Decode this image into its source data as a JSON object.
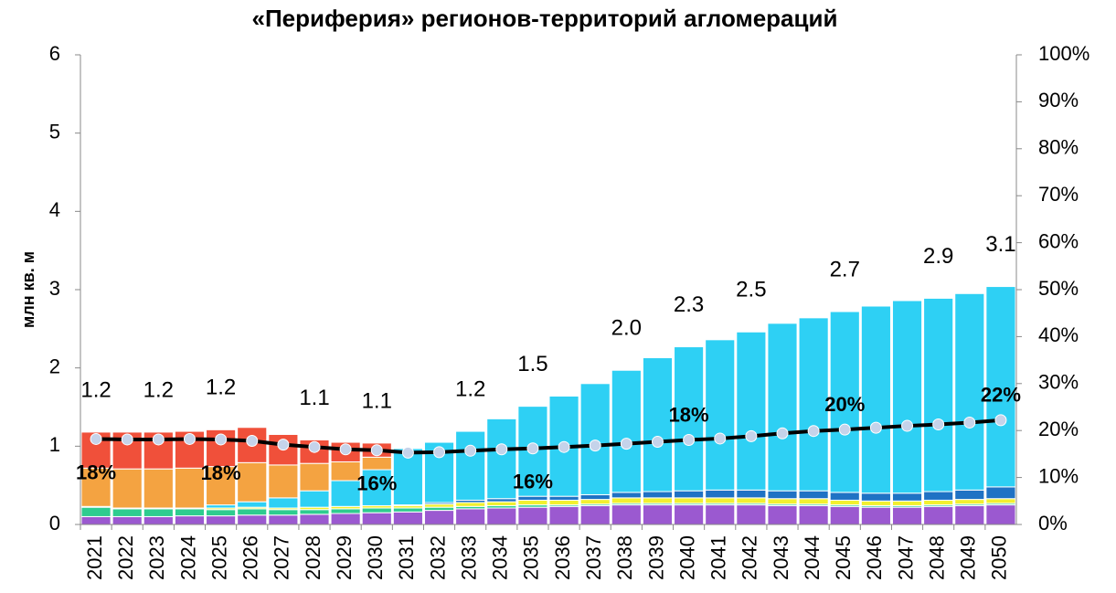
{
  "chart_data": {
    "type": "stacked_bar_line",
    "title": "«Периферия» регионов-территорий агломераций",
    "y_label": "млн кв. м",
    "categories": [
      "2021",
      "2022",
      "2023",
      "2024",
      "2025",
      "2026",
      "2027",
      "2028",
      "2029",
      "2030",
      "2031",
      "2032",
      "2033",
      "2034",
      "2035",
      "2036",
      "2037",
      "2038",
      "2039",
      "2040",
      "2041",
      "2042",
      "2043",
      "2044",
      "2045",
      "2046",
      "2047",
      "2048",
      "2049",
      "2050"
    ],
    "ylim": [
      0,
      6
    ],
    "yticks": [
      0,
      1,
      2,
      3,
      4,
      5,
      6
    ],
    "y2lim": [
      0,
      100
    ],
    "y2ticks": [
      {
        "value": 0,
        "label": "0%"
      },
      {
        "value": 10,
        "label": "10%"
      },
      {
        "value": 20,
        "label": "20%"
      },
      {
        "value": 30,
        "label": "30%"
      },
      {
        "value": 40,
        "label": "40%"
      },
      {
        "value": 50,
        "label": "50%"
      },
      {
        "value": 60,
        "label": "60%"
      },
      {
        "value": 70,
        "label": "70%"
      },
      {
        "value": 80,
        "label": "80%"
      },
      {
        "value": 90,
        "label": "90%"
      },
      {
        "value": 100,
        "label": "100%"
      }
    ],
    "series": [
      {
        "color": "#9b59d0",
        "values": [
          0.1,
          0.1,
          0.1,
          0.11,
          0.11,
          0.12,
          0.12,
          0.13,
          0.14,
          0.15,
          0.16,
          0.18,
          0.2,
          0.21,
          0.22,
          0.23,
          0.24,
          0.25,
          0.25,
          0.25,
          0.25,
          0.25,
          0.24,
          0.24,
          0.23,
          0.22,
          0.22,
          0.23,
          0.24,
          0.25
        ]
      },
      {
        "color": "#2ecc8f",
        "values": [
          0.12,
          0.1,
          0.1,
          0.09,
          0.08,
          0.08,
          0.07,
          0.06,
          0.06,
          0.06,
          0.05,
          0.04,
          0.03,
          0.03,
          0.03,
          0.02,
          0.02,
          0.02,
          0.02,
          0.02,
          0.02,
          0.02,
          0.02,
          0.02,
          0.02,
          0.02,
          0.02,
          0.02,
          0.02,
          0.02
        ]
      },
      {
        "color": "#f2f030",
        "values": [
          0.01,
          0.01,
          0.01,
          0.01,
          0.02,
          0.02,
          0.02,
          0.03,
          0.03,
          0.03,
          0.03,
          0.04,
          0.05,
          0.05,
          0.06,
          0.06,
          0.06,
          0.07,
          0.07,
          0.07,
          0.07,
          0.07,
          0.07,
          0.07,
          0.06,
          0.06,
          0.06,
          0.06,
          0.06,
          0.06
        ]
      },
      {
        "color": "#1f72c4",
        "values": [
          0,
          0,
          0,
          0,
          0,
          0,
          0,
          0,
          0,
          0,
          0.01,
          0.02,
          0.03,
          0.04,
          0.05,
          0.05,
          0.06,
          0.07,
          0.08,
          0.09,
          0.1,
          0.1,
          0.1,
          0.1,
          0.1,
          0.1,
          0.1,
          0.11,
          0.12,
          0.15
        ]
      },
      {
        "color": "#2ed0f4",
        "values": [
          0,
          0,
          0,
          0,
          0.04,
          0.07,
          0.13,
          0.21,
          0.33,
          0.46,
          0.72,
          0.77,
          0.88,
          1.02,
          1.15,
          1.28,
          1.42,
          1.56,
          1.71,
          1.84,
          1.92,
          2.02,
          2.14,
          2.21,
          2.31,
          2.39,
          2.46,
          2.47,
          2.51,
          2.56
        ]
      },
      {
        "color": "#f4a341",
        "values": [
          0.49,
          0.5,
          0.5,
          0.51,
          0.49,
          0.5,
          0.42,
          0.35,
          0.24,
          0.16,
          0,
          0,
          0,
          0,
          0,
          0,
          0,
          0,
          0,
          0,
          0,
          0,
          0,
          0,
          0,
          0,
          0,
          0,
          0,
          0
        ]
      },
      {
        "color": "#f0503a",
        "values": [
          0.46,
          0.47,
          0.47,
          0.47,
          0.47,
          0.45,
          0.39,
          0.3,
          0.25,
          0.18,
          0,
          0,
          0,
          0,
          0,
          0,
          0,
          0,
          0,
          0,
          0,
          0,
          0,
          0,
          0,
          0,
          0,
          0,
          0,
          0
        ]
      }
    ],
    "line": {
      "axis": "y2",
      "color": "#000000",
      "marker_color": "#c5d3ea",
      "values": [
        18.2,
        18.1,
        18.1,
        18.2,
        18.1,
        17.8,
        17.0,
        16.5,
        16.0,
        15.8,
        15.3,
        15.4,
        15.7,
        16.0,
        16.2,
        16.5,
        16.8,
        17.2,
        17.6,
        18.0,
        18.3,
        18.8,
        19.4,
        19.9,
        20.2,
        20.6,
        21.0,
        21.3,
        21.7,
        22.2
      ]
    },
    "total_labels": [
      {
        "x": "2021",
        "text": "1.2"
      },
      {
        "x": "2023",
        "text": "1.2"
      },
      {
        "x": "2025",
        "text": "1.2"
      },
      {
        "x": "2028",
        "text": "1.1"
      },
      {
        "x": "2030",
        "text": "1.1"
      },
      {
        "x": "2033",
        "text": "1.2"
      },
      {
        "x": "2035",
        "text": "1.5"
      },
      {
        "x": "2038",
        "text": "2.0"
      },
      {
        "x": "2040",
        "text": "2.3"
      },
      {
        "x": "2042",
        "text": "2.5"
      },
      {
        "x": "2045",
        "text": "2.7"
      },
      {
        "x": "2048",
        "text": "2.9"
      },
      {
        "x": "2050",
        "text": "3.1"
      }
    ],
    "line_labels": [
      {
        "x": "2021",
        "text": "18%",
        "position": "below"
      },
      {
        "x": "2025",
        "text": "18%",
        "position": "below"
      },
      {
        "x": "2030",
        "text": "16%",
        "position": "below"
      },
      {
        "x": "2035",
        "text": "16%",
        "position": "below"
      },
      {
        "x": "2040",
        "text": "18%",
        "position": "above"
      },
      {
        "x": "2045",
        "text": "20%",
        "position": "above"
      },
      {
        "x": "2050",
        "text": "22%",
        "position": "above"
      }
    ]
  }
}
